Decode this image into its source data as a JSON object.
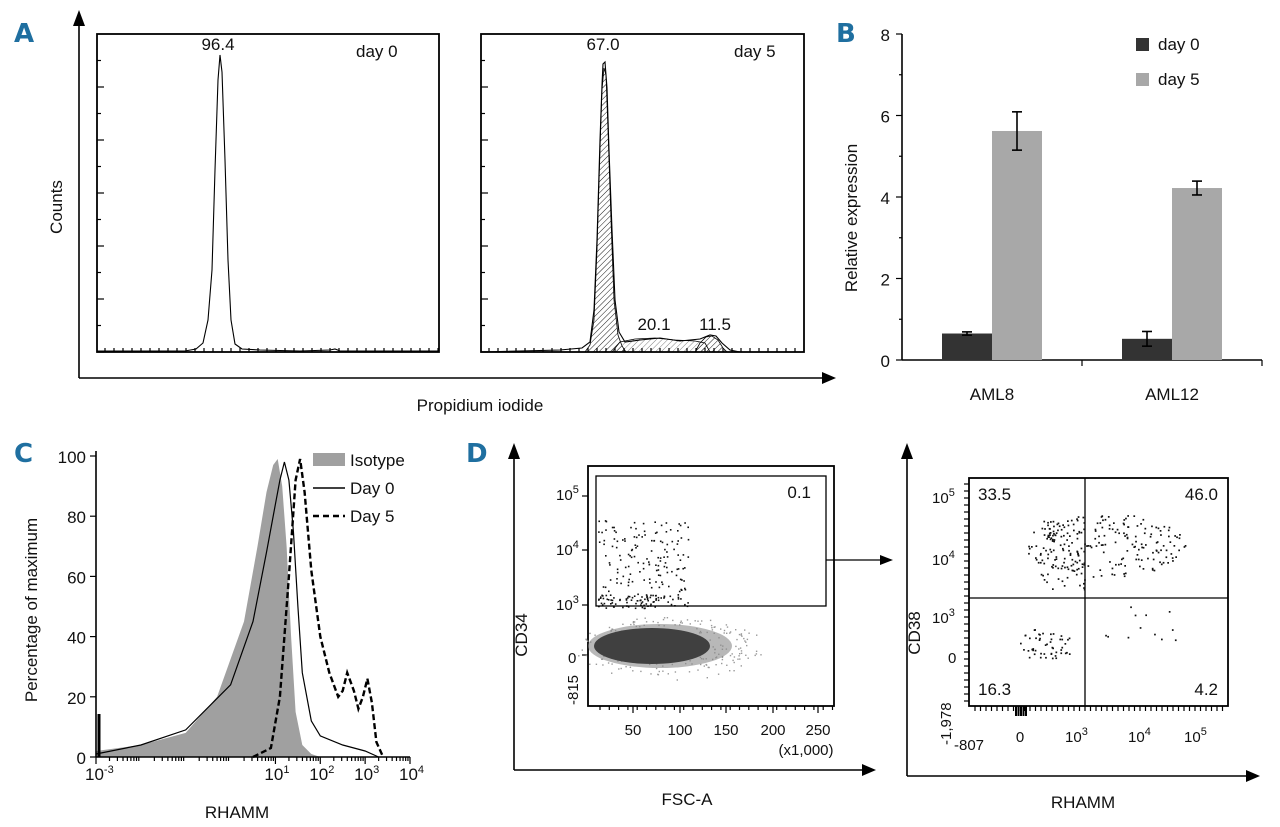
{
  "panel_labels": {
    "a": "A",
    "b": "B",
    "c": "C",
    "d": "D"
  },
  "chart_data": [
    {
      "id": "A",
      "type": "histogram",
      "ylabel": "Counts",
      "xlabel": "Propidium iodide",
      "subplots": [
        {
          "title": "day 0",
          "peak_labels": [
            "96.4"
          ]
        },
        {
          "title": "day 5",
          "peak_labels": [
            "67.0",
            "20.1",
            "11.5"
          ]
        }
      ]
    },
    {
      "id": "B",
      "type": "bar",
      "ylabel": "Relative expression",
      "categories": [
        "AML8",
        "AML12"
      ],
      "ylim": [
        0,
        8
      ],
      "yticks": [
        0,
        2,
        4,
        6,
        8
      ],
      "legend_position": "top-right",
      "series": [
        {
          "name": "day 0",
          "color": "#333333",
          "values": [
            0.65,
            0.52
          ],
          "errors": [
            0.04,
            0.18
          ]
        },
        {
          "name": "day 5",
          "color": "#a8a8a8",
          "values": [
            5.62,
            4.22
          ],
          "errors": [
            0.47,
            0.17
          ]
        }
      ]
    },
    {
      "id": "C",
      "type": "line",
      "xlabel": "RHAMM",
      "ylabel": "Percentage of maximum",
      "xscale": "log",
      "xlim": [
        -3,
        4
      ],
      "xtick_base": "10",
      "xtick_exponents": [
        "-3",
        "1",
        "2",
        "3",
        "4"
      ],
      "ylim": [
        0,
        100
      ],
      "yticks": [
        0,
        20,
        40,
        60,
        80,
        100
      ],
      "legend_position": "top-right",
      "series": [
        {
          "name": "Isotype",
          "style": "filled",
          "color": "#a0a0a0",
          "x": [
            -3.0,
            -2.0,
            -1.0,
            -0.3,
            0.3,
            0.6,
            0.8,
            0.95,
            1.05,
            1.15,
            1.25,
            1.35,
            1.45,
            1.6,
            1.8,
            2.0
          ],
          "y": [
            2,
            4,
            8,
            20,
            45,
            70,
            88,
            97,
            99,
            90,
            70,
            40,
            15,
            4,
            1,
            0
          ]
        },
        {
          "name": "Day 0",
          "style": "solid",
          "color": "#000000",
          "x": [
            -3.0,
            -2.0,
            -1.0,
            0.0,
            0.5,
            0.8,
            1.0,
            1.1,
            1.2,
            1.3,
            1.4,
            1.5,
            1.6,
            1.8,
            2.0,
            2.5,
            3.0,
            3.3
          ],
          "y": [
            1,
            4,
            9,
            24,
            45,
            68,
            84,
            92,
            98,
            92,
            75,
            50,
            28,
            12,
            7,
            4,
            2,
            0
          ]
        },
        {
          "name": "Day 5",
          "style": "dashed",
          "color": "#000000",
          "x": [
            0.5,
            0.9,
            1.1,
            1.3,
            1.45,
            1.55,
            1.65,
            1.8,
            2.0,
            2.2,
            2.4,
            2.5,
            2.6,
            2.75,
            2.85,
            2.95,
            3.05,
            3.15,
            3.25,
            3.4
          ],
          "y": [
            0,
            3,
            20,
            60,
            92,
            99,
            88,
            62,
            40,
            28,
            20,
            22,
            28,
            22,
            16,
            20,
            26,
            18,
            5,
            0
          ]
        }
      ]
    },
    {
      "id": "D",
      "type": "scatter",
      "subplots": [
        {
          "xlabel": "FSC-A",
          "ylabel": "CD34",
          "xticks": [
            "50",
            "100",
            "150",
            "200",
            "250"
          ],
          "xunit": "(x1,000)",
          "ytick_base": "10",
          "ytick_exponents": [
            "3",
            "4",
            "5"
          ],
          "yticks_linear": [
            "0",
            "-815"
          ],
          "gate_value": "0.1"
        },
        {
          "xlabel": "RHAMM",
          "ylabel": "CD38",
          "xticks_linear": [
            "-807",
            "0"
          ],
          "xtick_exponents": [
            "3",
            "4",
            "5"
          ],
          "ytick_exponents": [
            "3",
            "4",
            "5"
          ],
          "yticks_linear": [
            "0",
            "-1,978"
          ],
          "quadrants": {
            "top_left": "33.5",
            "top_right": "46.0",
            "bottom_left": "16.3",
            "bottom_right": "4.2"
          }
        }
      ]
    }
  ]
}
